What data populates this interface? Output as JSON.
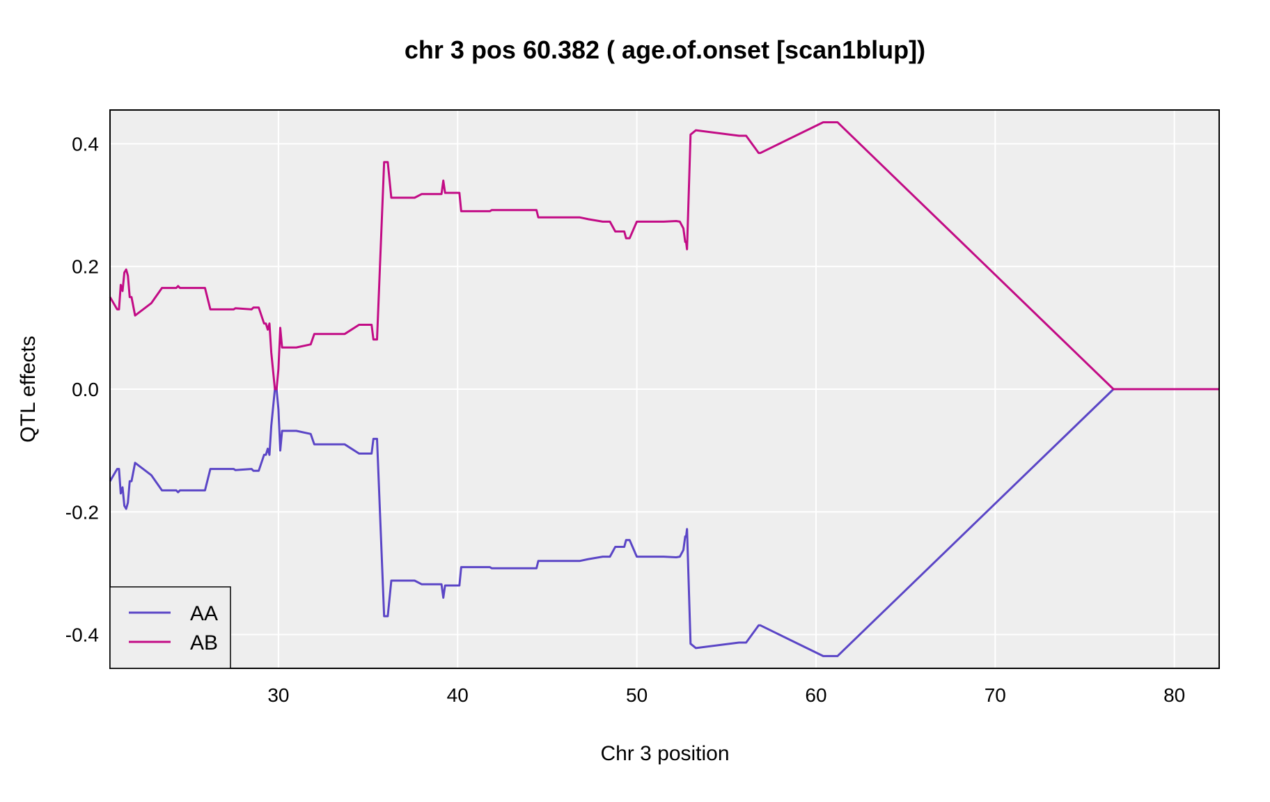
{
  "chart_data": {
    "type": "line",
    "title": "chr 3 pos 60.382 ( age.of.onset  [scan1blup])",
    "xlabel": "Chr 3 position",
    "ylabel": "QTL effects",
    "xlim": [
      20.6,
      82.5
    ],
    "ylim": [
      -0.455,
      0.455
    ],
    "x_ticks": [
      30,
      40,
      50,
      60,
      70,
      80
    ],
    "y_ticks": [
      -0.4,
      -0.2,
      0.0,
      0.2,
      0.4
    ],
    "y_tick_labels": [
      "-0.4",
      "-0.2",
      "0.0",
      "0.2",
      "0.4"
    ],
    "grid": true,
    "legend_position": "bottom-left",
    "background_color": "#eeeeee",
    "series": [
      {
        "name": "AA",
        "color": "#5a45c6",
        "x": [
          20.6,
          21.0,
          21.1,
          21.2,
          21.3,
          21.4,
          21.5,
          21.6,
          21.7,
          21.8,
          22.0,
          22.9,
          23.5,
          24.3,
          24.4,
          24.5,
          25.9,
          26.2,
          27.5,
          27.6,
          28.5,
          28.6,
          28.9,
          29.2,
          29.3,
          29.4,
          29.5,
          29.6,
          29.7,
          29.8,
          29.9,
          30.0,
          30.1,
          30.2,
          31.0,
          31.8,
          32.0,
          33.4,
          33.7,
          34.5,
          35.2,
          35.3,
          35.5,
          35.9,
          36.1,
          36.3,
          37.2,
          37.6,
          38.0,
          38.4,
          39.1,
          39.2,
          39.3,
          40.1,
          40.2,
          41.6,
          41.7,
          41.8,
          41.9,
          42.0,
          44.4,
          44.5,
          46.0,
          46.8,
          47.3,
          48.1,
          48.5,
          48.8,
          49.3,
          49.4,
          49.6,
          50.0,
          50.5,
          51.5,
          52.2,
          52.4,
          52.6,
          52.7,
          52.75,
          52.8,
          53.0,
          53.3,
          55.7,
          56.1,
          56.8,
          56.9,
          60.4,
          61.2,
          76.6,
          82.5
        ],
        "y": [
          -0.15,
          -0.13,
          -0.13,
          -0.17,
          -0.16,
          -0.19,
          -0.195,
          -0.185,
          -0.15,
          -0.15,
          -0.12,
          -0.14,
          -0.165,
          -0.165,
          -0.168,
          -0.165,
          -0.165,
          -0.13,
          -0.13,
          -0.132,
          -0.13,
          -0.133,
          -0.133,
          -0.107,
          -0.107,
          -0.097,
          -0.107,
          -0.06,
          -0.03,
          0.0,
          0.0,
          -0.033,
          -0.1,
          -0.068,
          -0.068,
          -0.073,
          -0.09,
          -0.09,
          -0.09,
          -0.105,
          -0.105,
          -0.081,
          -0.081,
          -0.37,
          -0.37,
          -0.312,
          -0.312,
          -0.312,
          -0.318,
          -0.318,
          -0.318,
          -0.34,
          -0.32,
          -0.32,
          -0.29,
          -0.29,
          -0.29,
          -0.29,
          -0.292,
          -0.292,
          -0.292,
          -0.28,
          -0.28,
          -0.28,
          -0.277,
          -0.273,
          -0.273,
          -0.257,
          -0.257,
          -0.246,
          -0.246,
          -0.273,
          -0.273,
          -0.273,
          -0.274,
          -0.273,
          -0.262,
          -0.24,
          -0.24,
          -0.228,
          -0.415,
          -0.422,
          -0.413,
          -0.413,
          -0.385,
          -0.385,
          -0.435,
          -0.435,
          0.0,
          0.0
        ]
      },
      {
        "name": "AB",
        "color": "#c20b85",
        "x": [
          20.6,
          21.0,
          21.1,
          21.2,
          21.3,
          21.4,
          21.5,
          21.6,
          21.7,
          21.8,
          22.0,
          22.9,
          23.5,
          24.3,
          24.4,
          24.5,
          25.9,
          26.2,
          27.5,
          27.6,
          28.5,
          28.6,
          28.9,
          29.2,
          29.3,
          29.4,
          29.5,
          29.6,
          29.7,
          29.8,
          29.9,
          30.0,
          30.1,
          30.2,
          31.0,
          31.8,
          32.0,
          33.4,
          33.7,
          34.5,
          35.2,
          35.3,
          35.5,
          35.9,
          36.1,
          36.3,
          37.2,
          37.6,
          38.0,
          38.4,
          39.1,
          39.2,
          39.3,
          40.1,
          40.2,
          41.6,
          41.7,
          41.8,
          41.9,
          42.0,
          44.4,
          44.5,
          46.0,
          46.8,
          47.3,
          48.1,
          48.5,
          48.8,
          49.3,
          49.4,
          49.6,
          50.0,
          50.5,
          51.5,
          52.2,
          52.4,
          52.6,
          52.7,
          52.75,
          52.8,
          53.0,
          53.3,
          55.7,
          56.1,
          56.8,
          56.9,
          60.4,
          61.2,
          76.6,
          82.5
        ],
        "y": [
          0.15,
          0.13,
          0.13,
          0.17,
          0.16,
          0.19,
          0.195,
          0.185,
          0.15,
          0.15,
          0.12,
          0.14,
          0.165,
          0.165,
          0.168,
          0.165,
          0.165,
          0.13,
          0.13,
          0.132,
          0.13,
          0.133,
          0.133,
          0.107,
          0.107,
          0.097,
          0.107,
          0.06,
          0.03,
          0.0,
          0.0,
          0.033,
          0.1,
          0.068,
          0.068,
          0.073,
          0.09,
          0.09,
          0.09,
          0.105,
          0.105,
          0.081,
          0.081,
          0.37,
          0.37,
          0.312,
          0.312,
          0.312,
          0.318,
          0.318,
          0.318,
          0.34,
          0.32,
          0.32,
          0.29,
          0.29,
          0.29,
          0.29,
          0.292,
          0.292,
          0.292,
          0.28,
          0.28,
          0.28,
          0.277,
          0.273,
          0.273,
          0.257,
          0.257,
          0.246,
          0.246,
          0.273,
          0.273,
          0.273,
          0.274,
          0.273,
          0.262,
          0.24,
          0.24,
          0.228,
          0.415,
          0.422,
          0.413,
          0.413,
          0.385,
          0.385,
          0.435,
          0.435,
          0.0,
          0.0
        ]
      }
    ]
  }
}
